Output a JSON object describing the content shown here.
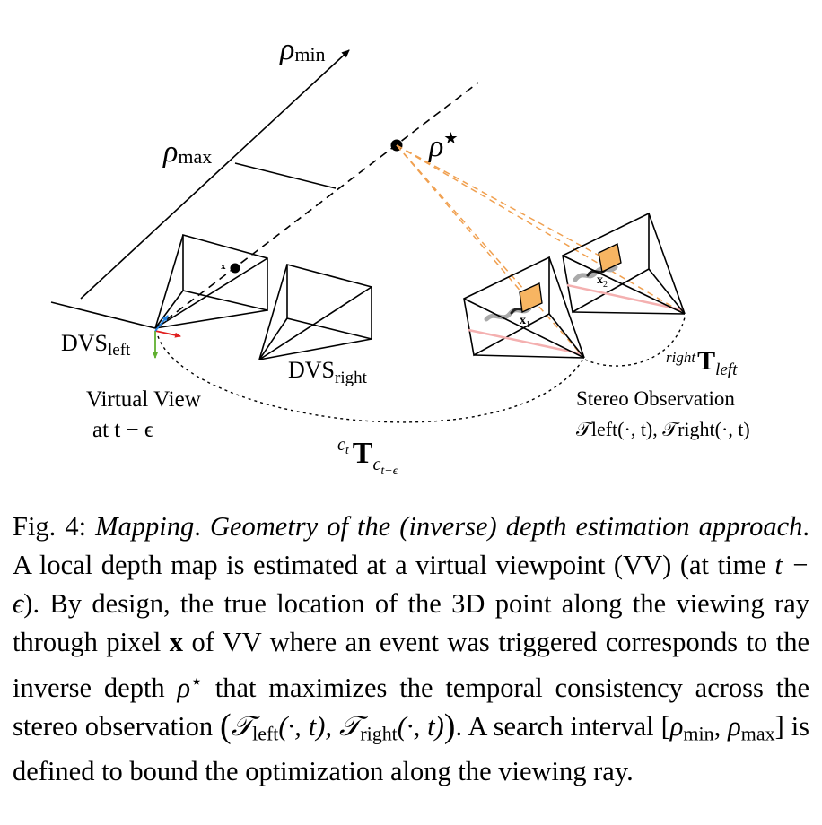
{
  "diagram": {
    "labels": {
      "rho_min": "ρ",
      "rho_min_sub": "min",
      "rho_max": "ρ",
      "rho_max_sub": "max",
      "rho_star": "ρ",
      "rho_star_sup": "★",
      "pixel_x": "x",
      "dvs_left": "DVS",
      "dvs_left_sub": "left",
      "dvs_right": "DVS",
      "dvs_right_sub": "right",
      "virtual_view_line1": "Virtual View",
      "virtual_view_line2": "at t − ϵ",
      "stereo_obs_line1": "Stereo Observation",
      "stereo_obs_line2": "𝒯left(·, t), 𝒯right(·, t)",
      "transform_T": "T",
      "transform_sup": "c",
      "transform_sup_sub": "t",
      "transform_sub": "c",
      "transform_sub_sub": "t−ϵ",
      "rl_T": "T",
      "rl_pre": "right",
      "rl_sub": "left",
      "x1": "x",
      "x1_sub": "1",
      "x2": "x",
      "x2_sub": "2"
    },
    "colors": {
      "ray_orange": "#f0a050",
      "patch_fill": "#f7b562",
      "axis_red": "#e02020",
      "axis_green": "#60b030",
      "axis_blue": "#2080e0",
      "pink_line": "#f4b0b0"
    }
  },
  "caption": {
    "fig_label": "Fig. 4:",
    "title_a": "Mapping",
    "title_b": "Geometry of the (inverse) depth estimation approach",
    "s1": "A local depth map is estimated at a virtual viewpoint (VV) (at time",
    "s1_math": "t − ϵ",
    "s1_end": "). By design, the true location of the 3D point along the viewing ray through pixel",
    "s1_x": "x",
    "s2": "of VV where an event was triggered corresponds to the inverse depth",
    "s2_rho": "ρ",
    "s2_star": "⋆",
    "s3": "that maximizes the temporal consistency across the stereo observation",
    "t_left": "𝒯",
    "t_left_sub": "left",
    "t_args": "(·, t), ",
    "t_right": "𝒯",
    "t_right_sub": "right",
    "t_args2": "(·, t)",
    "s4": ". A search interval",
    "interval_open": "[",
    "rho_a": "ρ",
    "rho_a_sub": "min",
    "comma": ", ",
    "rho_b": "ρ",
    "rho_b_sub": "max",
    "interval_close": "]",
    "s5": "is defined to bound the optimization along the viewing ray."
  }
}
